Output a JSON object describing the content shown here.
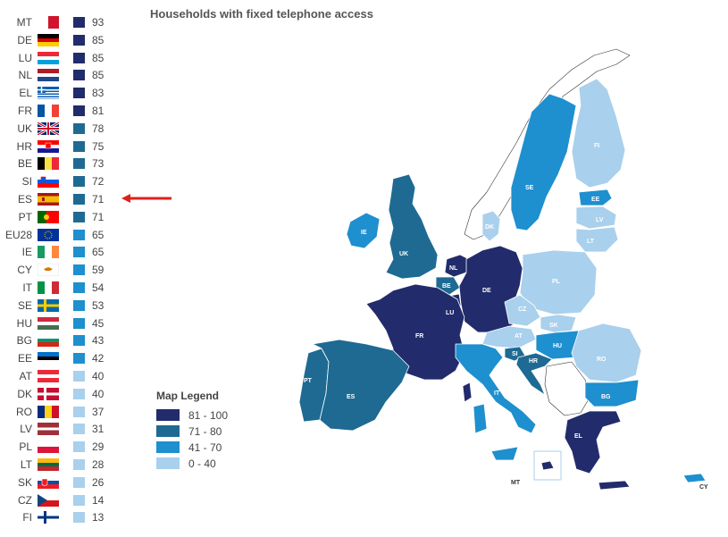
{
  "title": "Households with fixed telephone access",
  "colors": {
    "band_81_100": "#222b6b",
    "band_71_80": "#1e6a93",
    "band_41_70": "#1e8fcf",
    "band_0_40": "#a9d0ec",
    "arrow": "#e0201b"
  },
  "ranking": [
    {
      "code": "MT",
      "value": 93,
      "band": "band_81_100",
      "flag": "flag-mt-icon"
    },
    {
      "code": "DE",
      "value": 85,
      "band": "band_81_100",
      "flag": "flag-de-icon"
    },
    {
      "code": "LU",
      "value": 85,
      "band": "band_81_100",
      "flag": "flag-lu-icon"
    },
    {
      "code": "NL",
      "value": 85,
      "band": "band_81_100",
      "flag": "flag-nl-icon"
    },
    {
      "code": "EL",
      "value": 83,
      "band": "band_81_100",
      "flag": "flag-el-icon"
    },
    {
      "code": "FR",
      "value": 81,
      "band": "band_81_100",
      "flag": "flag-fr-icon"
    },
    {
      "code": "UK",
      "value": 78,
      "band": "band_71_80",
      "flag": "flag-uk-icon"
    },
    {
      "code": "HR",
      "value": 75,
      "band": "band_71_80",
      "flag": "flag-hr-icon"
    },
    {
      "code": "BE",
      "value": 73,
      "band": "band_71_80",
      "flag": "flag-be-icon"
    },
    {
      "code": "SI",
      "value": 72,
      "band": "band_71_80",
      "flag": "flag-si-icon"
    },
    {
      "code": "ES",
      "value": 71,
      "band": "band_71_80",
      "flag": "flag-es-icon"
    },
    {
      "code": "PT",
      "value": 71,
      "band": "band_71_80",
      "flag": "flag-pt-icon"
    },
    {
      "code": "EU28",
      "value": 65,
      "band": "band_41_70",
      "flag": "flag-eu-icon"
    },
    {
      "code": "IE",
      "value": 65,
      "band": "band_41_70",
      "flag": "flag-ie-icon"
    },
    {
      "code": "CY",
      "value": 59,
      "band": "band_41_70",
      "flag": "flag-cy-icon"
    },
    {
      "code": "IT",
      "value": 54,
      "band": "band_41_70",
      "flag": "flag-it-icon"
    },
    {
      "code": "SE",
      "value": 53,
      "band": "band_41_70",
      "flag": "flag-se-icon"
    },
    {
      "code": "HU",
      "value": 45,
      "band": "band_41_70",
      "flag": "flag-hu-icon"
    },
    {
      "code": "BG",
      "value": 43,
      "band": "band_41_70",
      "flag": "flag-bg-icon"
    },
    {
      "code": "EE",
      "value": 42,
      "band": "band_41_70",
      "flag": "flag-ee-icon"
    },
    {
      "code": "AT",
      "value": 40,
      "band": "band_0_40",
      "flag": "flag-at-icon"
    },
    {
      "code": "DK",
      "value": 40,
      "band": "band_0_40",
      "flag": "flag-dk-icon"
    },
    {
      "code": "RO",
      "value": 37,
      "band": "band_0_40",
      "flag": "flag-ro-icon"
    },
    {
      "code": "LV",
      "value": 31,
      "band": "band_0_40",
      "flag": "flag-lv-icon"
    },
    {
      "code": "PL",
      "value": 29,
      "band": "band_0_40",
      "flag": "flag-pl-icon"
    },
    {
      "code": "LT",
      "value": 28,
      "band": "band_0_40",
      "flag": "flag-lt-icon"
    },
    {
      "code": "SK",
      "value": 26,
      "band": "band_0_40",
      "flag": "flag-sk-icon"
    },
    {
      "code": "CZ",
      "value": 14,
      "band": "band_0_40",
      "flag": "flag-cz-icon"
    },
    {
      "code": "FI",
      "value": 13,
      "band": "band_0_40",
      "flag": "flag-fi-icon"
    }
  ],
  "highlight_code": "ES",
  "legend": {
    "title": "Map Legend",
    "items": [
      {
        "label": "81 - 100",
        "band": "band_81_100"
      },
      {
        "label": "71 - 80",
        "band": "band_71_80"
      },
      {
        "label": "41 - 70",
        "band": "band_41_70"
      },
      {
        "label": "0 - 40",
        "band": "band_0_40"
      }
    ]
  },
  "map_labels": {
    "FI": "FI",
    "SE": "SE",
    "EE": "EE",
    "LV": "LV",
    "LT": "LT",
    "DK": "DK",
    "IE": "IE",
    "UK": "UK",
    "NL": "NL",
    "BE": "BE",
    "LU": "LU",
    "DE": "DE",
    "PL": "PL",
    "CZ": "CZ",
    "SK": "SK",
    "AT": "AT",
    "HU": "HU",
    "RO": "RO",
    "SI": "SI",
    "HR": "HR",
    "FR": "FR",
    "PT": "PT",
    "ES": "ES",
    "IT": "IT",
    "BG": "BG",
    "EL": "EL",
    "MT": "MT",
    "CY": "CY"
  }
}
